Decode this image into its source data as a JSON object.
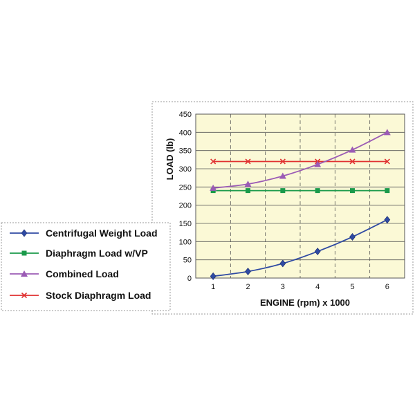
{
  "chart_data": {
    "type": "line",
    "title": "",
    "xlabel": "ENGINE (rpm) x 1000",
    "ylabel": "LOAD (lb)",
    "x": [
      1,
      2,
      3,
      4,
      5,
      6
    ],
    "x_ticks": [
      "1",
      "2",
      "3",
      "4",
      "5",
      "6"
    ],
    "xlim": [
      0.5,
      6.5
    ],
    "ylim": [
      0,
      450
    ],
    "y_ticks": [
      "0",
      "50",
      "100",
      "150",
      "200",
      "250",
      "300",
      "350",
      "400",
      "450"
    ],
    "y_tick_values": [
      0,
      50,
      100,
      150,
      200,
      250,
      300,
      350,
      400,
      450
    ],
    "grid": "horizontal solid, vertical dashed",
    "plot_background": "#fbf9d6",
    "legend_position": "left",
    "series": [
      {
        "name": "Centrifugal Weight Load",
        "values": [
          5,
          18,
          40,
          73,
          113,
          160
        ],
        "color": "#2f4aa3",
        "marker": "diamond",
        "smooth": true
      },
      {
        "name": "Diaphragm Load w/VP",
        "values": [
          240,
          240,
          240,
          240,
          240,
          240
        ],
        "color": "#1a9a4a",
        "marker": "square",
        "smooth": false
      },
      {
        "name": "Combined Load",
        "values": [
          247,
          258,
          280,
          312,
          352,
          400
        ],
        "color": "#9b5bb5",
        "marker": "triangle",
        "smooth": true
      },
      {
        "name": "Stock Diaphragm Load",
        "values": [
          320,
          320,
          320,
          320,
          320,
          320
        ],
        "color": "#e03030",
        "marker": "x",
        "smooth": false
      }
    ]
  }
}
